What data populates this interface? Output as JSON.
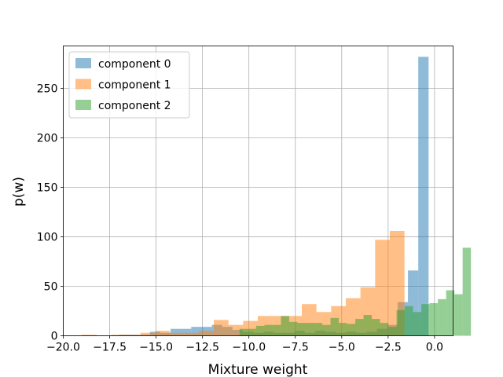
{
  "chart_data": {
    "type": "histogram",
    "xlabel": "Mixture weight",
    "ylabel": "p(w)",
    "xlim": [
      -20.0,
      1.0
    ],
    "ylim": [
      0,
      293
    ],
    "grid": true,
    "legend_position": "top-left",
    "x_ticks": [
      -20.0,
      -17.5,
      -15.0,
      -12.5,
      -10.0,
      -7.5,
      -5.0,
      -2.5,
      0.0
    ],
    "x_tick_labels": [
      "−20.0",
      "−17.5",
      "−15.0",
      "−12.5",
      "−10.0",
      "−7.5",
      "−5.0",
      "−2.5",
      "0.0"
    ],
    "y_ticks": [
      0,
      50,
      100,
      150,
      200,
      250
    ],
    "y_tick_labels": [
      "0",
      "50",
      "100",
      "150",
      "200",
      "250"
    ],
    "series": [
      {
        "name": "component 0",
        "color": "#1f77b4",
        "opacity": 0.5,
        "bin_start": -17.0,
        "bin_width": 0.556,
        "counts": [
          1,
          1,
          1,
          4,
          3,
          7,
          7,
          9,
          9,
          11,
          9,
          6,
          4,
          3,
          4,
          3,
          3,
          5,
          3,
          5,
          4,
          3,
          4,
          3,
          4,
          7,
          11,
          34,
          66,
          282
        ]
      },
      {
        "name": "component 1",
        "color": "#ff7f0e",
        "opacity": 0.5,
        "bin_start": -19.0,
        "bin_width": 0.79,
        "counts": [
          1,
          0,
          1,
          1,
          3,
          5,
          3,
          3,
          5,
          16,
          11,
          15,
          20,
          20,
          20,
          32,
          24,
          30,
          38,
          49,
          97,
          106
        ]
      },
      {
        "name": "component 2",
        "color": "#2ca02c",
        "opacity": 0.5,
        "bin_start": -10.5,
        "bin_width": 0.445,
        "counts": [
          7,
          7,
          10,
          11,
          11,
          20,
          14,
          13,
          13,
          13,
          11,
          18,
          13,
          12,
          17,
          21,
          17,
          13,
          9,
          26,
          30,
          24,
          32,
          33,
          37,
          46,
          42,
          89
        ]
      }
    ]
  }
}
